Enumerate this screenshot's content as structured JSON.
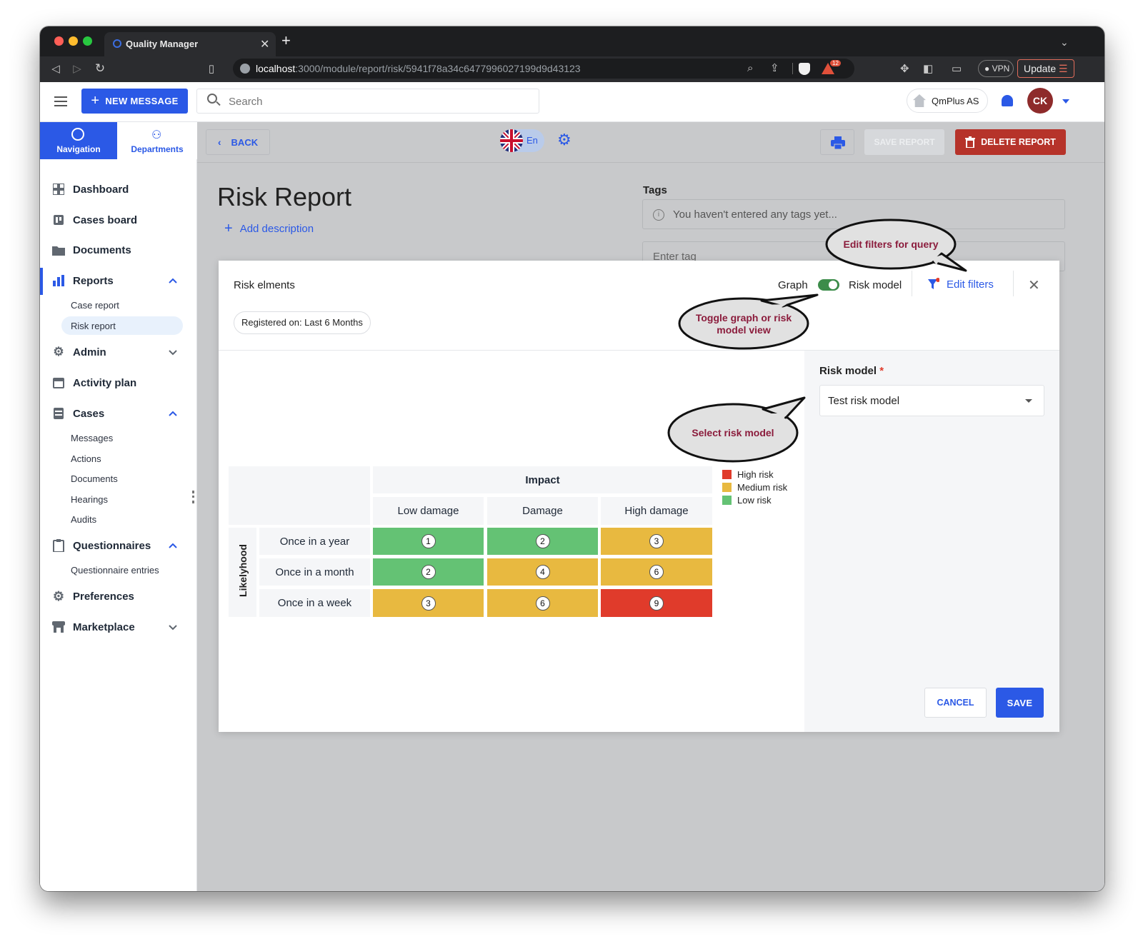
{
  "browser": {
    "tab_title": "Quality Manager",
    "url_host": "localhost",
    "url_path": ":3000/module/report/risk/5941f78a34c6477996027199d9d43123",
    "notif_count": "12",
    "vpn_label": "VPN",
    "update_label": "Update"
  },
  "topbar": {
    "new_message_label": "NEW MESSAGE",
    "search_placeholder": "Search",
    "company": "QmPlus AS",
    "avatar_initials": "CK"
  },
  "sidebar": {
    "tabs": [
      {
        "label": "Navigation"
      },
      {
        "label": "Departments"
      }
    ],
    "items": [
      {
        "label": "Dashboard",
        "icon": "dashboard-icon"
      },
      {
        "label": "Cases board",
        "icon": "cases-board-icon"
      },
      {
        "label": "Documents",
        "icon": "folder-icon"
      },
      {
        "label": "Reports",
        "icon": "bar-chart-icon"
      },
      {
        "label": "Admin",
        "icon": "gears-icon"
      },
      {
        "label": "Activity plan",
        "icon": "calendar-icon"
      },
      {
        "label": "Cases",
        "icon": "cases-icon"
      },
      {
        "label": "Questionnaires",
        "icon": "clipboard-icon"
      },
      {
        "label": "Preferences",
        "icon": "gear-icon"
      },
      {
        "label": "Marketplace",
        "icon": "store-icon"
      }
    ],
    "reports_sub": [
      "Case report",
      "Risk report"
    ],
    "cases_sub": [
      "Messages",
      "Actions",
      "Documents",
      "Hearings",
      "Audits"
    ],
    "questionnaires_sub": [
      "Questionnaire entries"
    ]
  },
  "toolbar": {
    "back_label": "BACK",
    "language": "En",
    "save_report_label": "SAVE REPORT",
    "delete_report_label": "DELETE REPORT"
  },
  "report": {
    "title": "Risk Report",
    "add_description": "Add description",
    "tags_label": "Tags",
    "tags_empty": "You haven't entered any tags yet...",
    "tag_input_placeholder": "Enter tag"
  },
  "dialog": {
    "title": "Risk elments",
    "graph_label": "Graph",
    "risk_model_label": "Risk model",
    "edit_filters_label": "Edit filters",
    "filter_chip": "Registered on: Last 6 Months",
    "side_label": "Risk model",
    "required_mark": "*",
    "selected_model": "Test risk model",
    "cancel_label": "CANCEL",
    "save_label": "SAVE"
  },
  "matrix": {
    "impact_header": "Impact",
    "likelyhood_header": "Likelyhood",
    "columns": [
      "Low damage",
      "Damage",
      "High damage"
    ],
    "rows": [
      "Once in a year",
      "Once in a month",
      "Once in a week"
    ],
    "values": [
      [
        "1",
        "2",
        "3"
      ],
      [
        "2",
        "4",
        "6"
      ],
      [
        "3",
        "6",
        "9"
      ]
    ],
    "levels": [
      [
        "low",
        "low",
        "medium"
      ],
      [
        "low",
        "medium",
        "medium"
      ],
      [
        "medium",
        "medium",
        "high"
      ]
    ],
    "legend": [
      {
        "label": "High risk",
        "color": "#e03b2b"
      },
      {
        "label": "Medium risk",
        "color": "#e8b940"
      },
      {
        "label": "Low risk",
        "color": "#64c274"
      }
    ]
  },
  "callouts": {
    "edit_filters": "Edit filters for query",
    "toggle": "Toggle graph or risk model view",
    "select": "Select risk model"
  },
  "colors": {
    "primary": "#2b59e6",
    "danger": "#c0392b",
    "low": "#64c274",
    "medium": "#e8b940",
    "high": "#e03b2b",
    "toggle": "#3c8c4a"
  }
}
